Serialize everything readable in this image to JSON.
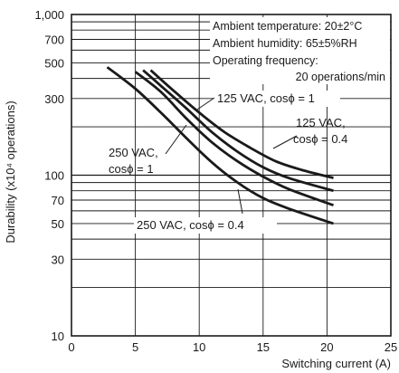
{
  "chart_data": {
    "type": "line",
    "xlabel": "Switching current (A)",
    "ylabel": "Durability (x10⁴ operations)",
    "xlim": [
      0,
      25
    ],
    "ylim": [
      10,
      1000
    ],
    "yscale": "log",
    "grid": true,
    "x_ticks": [
      0,
      5,
      10,
      15,
      20,
      25
    ],
    "y_ticks": [
      10,
      30,
      50,
      70,
      100,
      300,
      500,
      700,
      1000
    ],
    "y_tick_labels": [
      "10",
      "30",
      "50",
      "70",
      "100",
      "300",
      "500",
      "700",
      "1,000"
    ],
    "notes": [
      "Ambient temperature: 20±2°C",
      "Ambient humidity: 65±5%RH",
      "Operating frequency:",
      "20 operations/min"
    ],
    "series": [
      {
        "name": "125 VAC, cosϕ = 1",
        "x": [
          6.2,
          8,
          10,
          12,
          14,
          16,
          18,
          20.5
        ],
        "y": [
          450,
          335,
          245,
          185,
          148,
          122,
          108,
          96
        ]
      },
      {
        "name": "125 VAC, cosϕ = 0.4",
        "x": [
          5.6,
          7,
          9,
          11,
          13,
          15,
          17,
          20.5
        ],
        "y": [
          450,
          360,
          260,
          185,
          140,
          112,
          96,
          80
        ]
      },
      {
        "name": "250 VAC, cosϕ = 1",
        "x": [
          5.0,
          7,
          9,
          11,
          13,
          15,
          17,
          20.5
        ],
        "y": [
          440,
          330,
          225,
          160,
          122,
          98,
          82,
          65
        ]
      },
      {
        "name": "250 VAC, cosϕ = 0.4",
        "x": [
          2.8,
          5,
          7,
          9,
          11,
          13,
          15,
          17,
          20.5
        ],
        "y": [
          470,
          345,
          245,
          170,
          120,
          90,
          72,
          62,
          50
        ]
      }
    ]
  }
}
